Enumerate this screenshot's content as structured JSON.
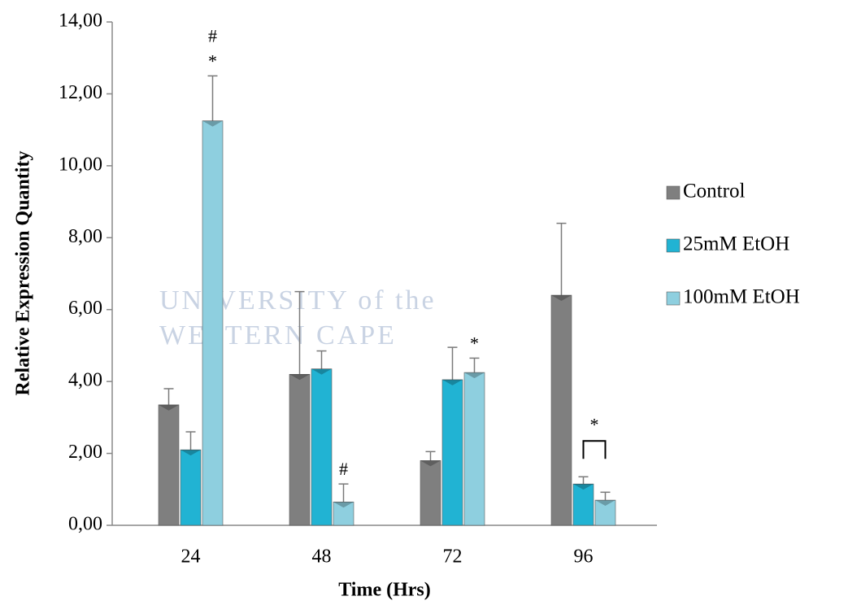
{
  "chart_data": {
    "type": "bar",
    "x_label": "Time (Hrs)",
    "y_label": "Relative Expression Quantity",
    "watermark": [
      "UNIVERSITY of the",
      "WESTERN CAPE"
    ],
    "categories": [
      "24",
      "48",
      "72",
      "96"
    ],
    "series": [
      {
        "name": "Control",
        "color": "#7f7f7f",
        "values": [
          3.35,
          4.2,
          1.8,
          6.4
        ],
        "errors": [
          0.45,
          2.3,
          0.25,
          2.0
        ],
        "annotations": [
          null,
          null,
          null,
          null
        ]
      },
      {
        "name": "25mM EtOH",
        "color": "#21b3d3",
        "values": [
          2.1,
          4.35,
          4.05,
          1.15
        ],
        "errors": [
          0.5,
          0.5,
          0.9,
          0.2
        ],
        "annotations": [
          null,
          null,
          null,
          null
        ]
      },
      {
        "name": "100mM EtOH",
        "color": "#8ecfdf",
        "values": [
          11.25,
          0.65,
          4.25,
          0.7
        ],
        "errors": [
          1.25,
          0.5,
          0.4,
          0.22
        ],
        "annotations": [
          [
            "#",
            "*"
          ],
          [
            "#"
          ],
          [
            "*"
          ],
          null
        ]
      }
    ],
    "bracket_labels": [
      null,
      null,
      null,
      "*"
    ],
    "ylim": [
      0,
      14
    ],
    "yticks": [
      {
        "value": 0,
        "label": "0,00"
      },
      {
        "value": 2,
        "label": "2,00"
      },
      {
        "value": 4,
        "label": "4,00"
      },
      {
        "value": 6,
        "label": "6,00"
      },
      {
        "value": 8,
        "label": "8,00"
      },
      {
        "value": 10,
        "label": "10,00"
      },
      {
        "value": 12,
        "label": "12,00"
      },
      {
        "value": 14,
        "label": "14,00"
      }
    ],
    "legend": "right"
  }
}
